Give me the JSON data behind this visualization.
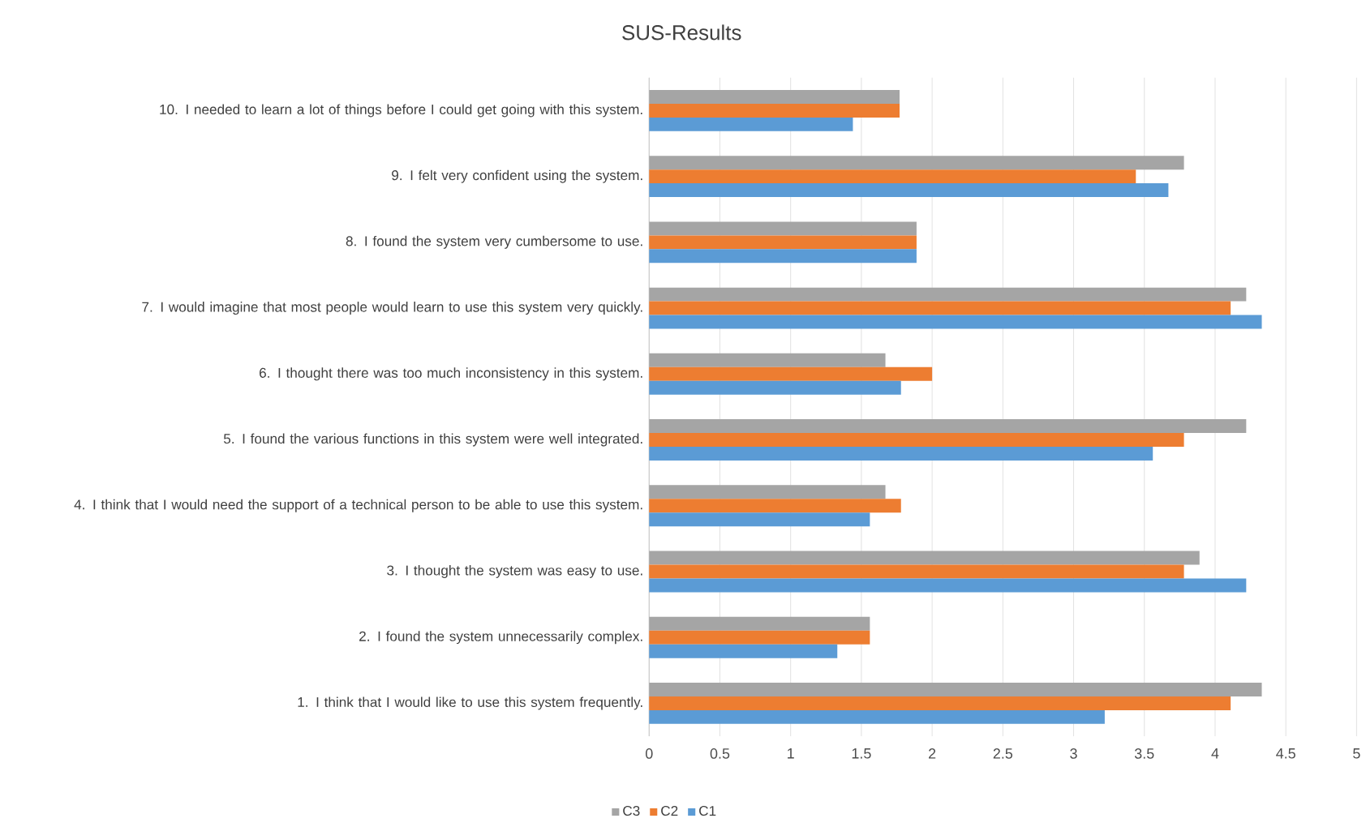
{
  "chart_data": {
    "type": "bar",
    "orientation": "horizontal",
    "title": "SUS-Results",
    "categories": [
      "10. I needed to learn a lot of things before I could get going with this system.",
      "9. I felt very confident using the system.",
      "8. I found the system very cumbersome to use.",
      "7. I would imagine that most people would learn to use this system very quickly.",
      "6. I thought there was too much inconsistency in this system.",
      "5. I found the various functions in this system were well integrated.",
      "4. I think that I would need the support of a technical person to be able to use this system.",
      "3. I thought the system was easy to use.",
      "2. I found the system unnecessarily complex.",
      "1. I think that I would like to use this system frequently."
    ],
    "series": [
      {
        "name": "C3",
        "color": "#a5a5a5",
        "values": [
          1.77,
          3.78,
          1.89,
          4.22,
          1.67,
          4.22,
          1.67,
          3.89,
          1.56,
          4.33
        ]
      },
      {
        "name": "C2",
        "color": "#ed7d31",
        "values": [
          1.77,
          3.44,
          1.89,
          4.11,
          2.0,
          3.78,
          1.78,
          3.78,
          1.56,
          4.11
        ]
      },
      {
        "name": "C1",
        "color": "#5b9bd5",
        "values": [
          1.44,
          3.67,
          1.89,
          4.33,
          1.78,
          3.56,
          1.56,
          4.22,
          1.33,
          3.22
        ]
      }
    ],
    "xlim": [
      0,
      5
    ],
    "xticks": [
      0,
      0.5,
      1,
      1.5,
      2,
      2.5,
      3,
      3.5,
      4,
      4.5,
      5
    ],
    "grid": "x",
    "legend": "bottom left"
  }
}
